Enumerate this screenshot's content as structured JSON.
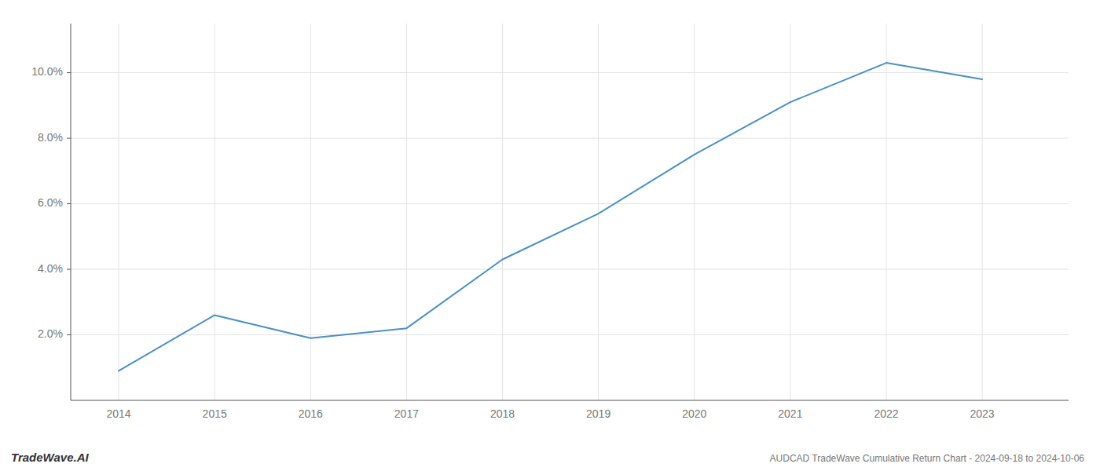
{
  "chart_data": {
    "type": "line",
    "title": "AUDCAD TradeWave Cumulative Return Chart - 2024-09-18 to 2024-10-06",
    "annotations": [
      "TradeWave.AI"
    ],
    "x": [
      2014,
      2015,
      2016,
      2017,
      2018,
      2019,
      2020,
      2021,
      2022,
      2023
    ],
    "values": [
      0.009,
      0.026,
      0.019,
      0.022,
      0.043,
      0.057,
      0.075,
      0.091,
      0.103,
      0.098
    ],
    "color": "#4a90c4",
    "xlim": [
      2013.5,
      2023.9
    ],
    "ylim": [
      0.0,
      0.115
    ],
    "xticks": [
      2014,
      2015,
      2016,
      2017,
      2018,
      2019,
      2020,
      2021,
      2022,
      2023
    ],
    "yticks": [
      {
        "value": 0.02,
        "label": "2.0%"
      },
      {
        "value": 0.04,
        "label": "4.0%"
      },
      {
        "value": 0.06,
        "label": "6.0%"
      },
      {
        "value": 0.08,
        "label": "8.0%"
      },
      {
        "value": 0.1,
        "label": "10.0%"
      }
    ],
    "grid": true
  }
}
